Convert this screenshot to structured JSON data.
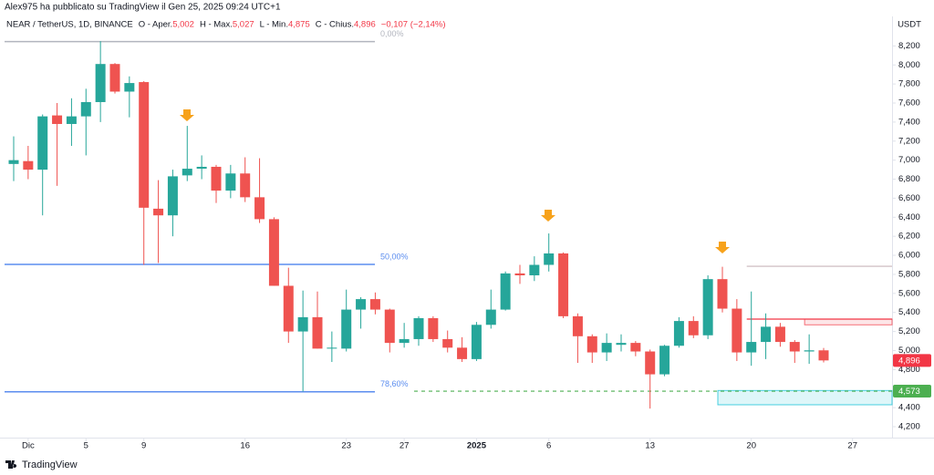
{
  "header": {
    "author_line": "Alex975 ha pubblicato su TradingView il Gen 25, 2025 09:24 UTC+1",
    "symbol": "NEAR / TetherUS, 1D, BINANCE",
    "ohlc": [
      {
        "label": "O - Aper.",
        "value": "5,002"
      },
      {
        "label": "H - Max.",
        "value": "5,027"
      },
      {
        "label": "L - Min.",
        "value": "4,875"
      },
      {
        "label": "C - Chius.",
        "value": "4,896"
      }
    ],
    "change": "−0,107 (−2,14%)"
  },
  "chart_data": {
    "type": "candlestick",
    "y_unit": "USDT",
    "up_color": "#26a69a",
    "down_color": "#ef5350",
    "open": [
      6960,
      6990,
      6900,
      7470,
      7380,
      7460,
      7610,
      8010,
      7720,
      7820,
      6490,
      6420,
      6840,
      6910,
      6930,
      6680,
      6860,
      6610,
      6380,
      5680,
      5200,
      5350,
      5020,
      5020,
      5430,
      5540,
      5430,
      5080,
      5120,
      5340,
      5120,
      5030,
      4910,
      5270,
      5430,
      5810,
      5790,
      5900,
      6020,
      5360,
      5150,
      4980,
      5060,
      5080,
      4990,
      4750,
      5050,
      5310,
      5160,
      5750,
      5440,
      4980,
      5090,
      5250,
      5090,
      4990,
      5002
    ],
    "high": [
      7250,
      7150,
      7480,
      7600,
      7650,
      7750,
      8250,
      8020,
      7880,
      7830,
      6790,
      6900,
      7360,
      7050,
      6950,
      6950,
      7030,
      7020,
      6400,
      5870,
      5630,
      5620,
      5200,
      5640,
      5560,
      5610,
      5440,
      5290,
      5360,
      5360,
      5210,
      5140,
      5300,
      5640,
      5830,
      5900,
      5990,
      6230,
      6030,
      5390,
      5170,
      5180,
      5170,
      5100,
      5010,
      5060,
      5350,
      5360,
      5790,
      5880,
      5540,
      5620,
      5390,
      5290,
      5110,
      5170,
      5027
    ],
    "low": [
      6780,
      6800,
      6420,
      6730,
      7150,
      7050,
      7400,
      7700,
      7450,
      5900,
      5920,
      6200,
      6780,
      6800,
      6550,
      6600,
      6560,
      6340,
      5680,
      5080,
      4570,
      5020,
      4880,
      4990,
      5230,
      5380,
      4980,
      5030,
      5050,
      5090,
      4980,
      4880,
      4890,
      5230,
      5420,
      5700,
      5730,
      5830,
      5340,
      4870,
      4870,
      4890,
      4990,
      4940,
      4390,
      4730,
      5030,
      5130,
      5120,
      5400,
      4890,
      4840,
      4910,
      5040,
      4870,
      4860,
      4875
    ],
    "close": [
      7000,
      6900,
      7460,
      7380,
      7460,
      7610,
      8010,
      7720,
      7810,
      6500,
      6420,
      6830,
      6910,
      6930,
      6680,
      6860,
      6610,
      6380,
      5680,
      5200,
      5350,
      5020,
      5030,
      5430,
      5540,
      5430,
      5080,
      5120,
      5340,
      5120,
      5030,
      4910,
      5270,
      5430,
      5810,
      5790,
      5900,
      6020,
      5360,
      5150,
      4980,
      5080,
      5080,
      4990,
      4750,
      5050,
      5310,
      5160,
      5750,
      5440,
      4980,
      5090,
      5250,
      5090,
      4990,
      5002,
      4896
    ],
    "xlim": [
      -0.63,
      60.73
    ],
    "xticks": [
      {
        "value": 1,
        "label": "Dic"
      },
      5,
      9,
      16,
      23,
      27,
      {
        "value": 32,
        "label": "2025"
      },
      {
        "value": 37,
        "label": "6"
      },
      {
        "value": 44,
        "label": "13"
      },
      {
        "value": 51,
        "label": "20"
      },
      {
        "value": 58,
        "label": "27"
      }
    ],
    "ylim": [
      4085,
      8510
    ],
    "yticks": [
      {
        "value": 4200,
        "label": "4,200"
      },
      {
        "value": 4400,
        "label": "4,400"
      },
      {
        "value": 4600,
        "label": "4,600"
      },
      {
        "value": 4800,
        "label": "4,800"
      },
      {
        "value": 5000,
        "label": "5,000"
      },
      {
        "value": 5200,
        "label": "5,200"
      },
      {
        "value": 5400,
        "label": "5,400"
      },
      {
        "value": 5600,
        "label": "5,600"
      },
      {
        "value": 5800,
        "label": "5,800"
      },
      {
        "value": 6000,
        "label": "6,000"
      },
      {
        "value": 6200,
        "label": "6,200"
      },
      {
        "value": 6400,
        "label": "6,400"
      },
      {
        "value": 6600,
        "label": "6,600"
      },
      {
        "value": 6800,
        "label": "6,800"
      },
      {
        "value": 7000,
        "label": "7,000"
      },
      {
        "value": 7200,
        "label": "7,200"
      },
      {
        "value": 7400,
        "label": "7,400"
      },
      {
        "value": 7600,
        "label": "7,600"
      },
      {
        "value": 7800,
        "label": "7,800"
      },
      {
        "value": 8000,
        "label": "8,000"
      },
      {
        "value": 8200,
        "label": "8,200"
      }
    ],
    "fib_levels": [
      {
        "value": 8245,
        "label": "0,00%",
        "color": "#b2b5be"
      },
      {
        "value": 5905,
        "label": "50,00%",
        "color": "#5b8def"
      },
      {
        "value": 4566,
        "label": "78,60%",
        "color": "#5b8def"
      }
    ],
    "levels": [
      {
        "value": 5885,
        "color": "#c8b4ba"
      },
      {
        "value": 5330,
        "color": "#f23645"
      },
      {
        "value": 4573,
        "color": "#4caf50",
        "dashed": true
      }
    ],
    "zones": [
      {
        "low": 4430,
        "high": 4580,
        "color": "#00bcd4"
      },
      {
        "low": 5270,
        "high": 5330,
        "color": "#f23645"
      }
    ],
    "price_labels": [
      {
        "value": 4896,
        "label": "4,896",
        "color": "#f23645"
      },
      {
        "value": 4573,
        "label": "4,573",
        "color": "#4caf50"
      }
    ]
  },
  "footer": {
    "brand": "TradingView"
  }
}
